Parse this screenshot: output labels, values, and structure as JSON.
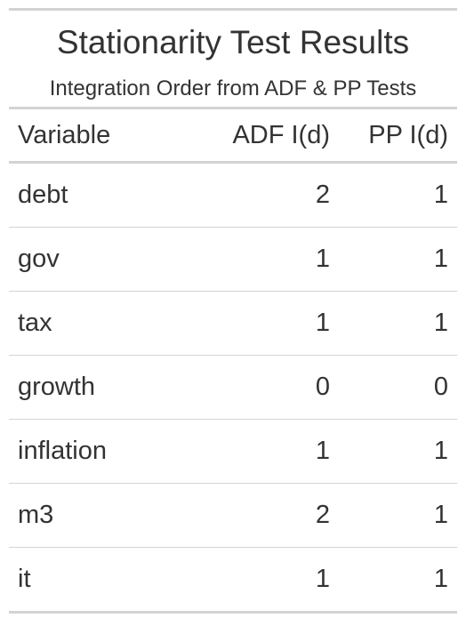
{
  "chart_data": {
    "type": "table",
    "title": "Stationarity Test Results",
    "subtitle": "Integration Order from ADF & PP Tests",
    "columns": [
      "Variable",
      "ADF I(d)",
      "PP I(d)"
    ],
    "rows": [
      {
        "variable": "debt",
        "adf": "2",
        "pp": "1"
      },
      {
        "variable": "gov",
        "adf": "1",
        "pp": "1"
      },
      {
        "variable": "tax",
        "adf": "1",
        "pp": "1"
      },
      {
        "variable": "growth",
        "adf": "0",
        "pp": "0"
      },
      {
        "variable": "inflation",
        "adf": "1",
        "pp": "1"
      },
      {
        "variable": "m3",
        "adf": "2",
        "pp": "1"
      },
      {
        "variable": "it",
        "adf": "1",
        "pp": "1"
      }
    ]
  }
}
